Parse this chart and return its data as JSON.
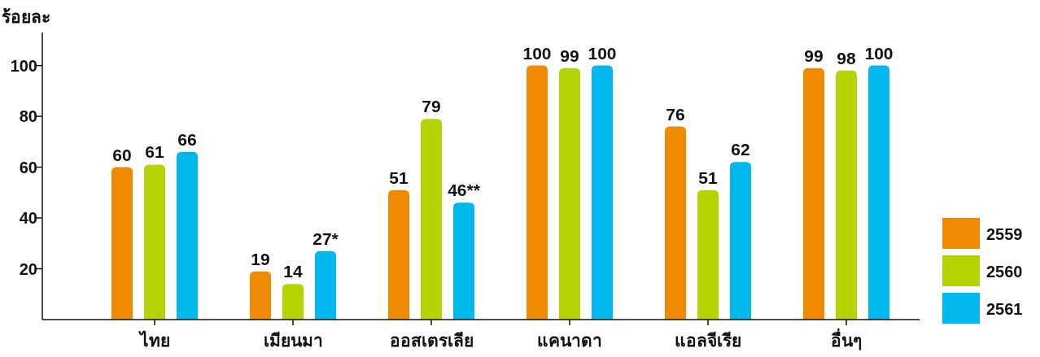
{
  "chart_data": {
    "type": "bar",
    "ylabel": "ร้อยละ",
    "categories": [
      "ไทย",
      "เมียนมา",
      "ออสเตรเลีย",
      "แคนาดา",
      "แอลจีเรีย",
      "อื่นๆ"
    ],
    "series": [
      {
        "name": "2559",
        "color": "#f08a00",
        "values": [
          60,
          19,
          51,
          100,
          76,
          99
        ],
        "value_labels": [
          "60",
          "19",
          "51",
          "100",
          "76",
          "99"
        ]
      },
      {
        "name": "2560",
        "color": "#b5d300",
        "values": [
          61,
          14,
          79,
          99,
          51,
          98
        ],
        "value_labels": [
          "61",
          "14",
          "79",
          "99",
          "51",
          "98"
        ]
      },
      {
        "name": "2561",
        "color": "#00b8ee",
        "values": [
          66,
          27,
          46,
          100,
          62,
          100
        ],
        "value_labels": [
          "66",
          "27*",
          "46**",
          "100",
          "62",
          "100"
        ]
      }
    ],
    "ylim": [
      0,
      113
    ],
    "yticks": [
      20,
      40,
      60,
      80,
      100
    ],
    "grid": false,
    "legend": "bottom right"
  }
}
